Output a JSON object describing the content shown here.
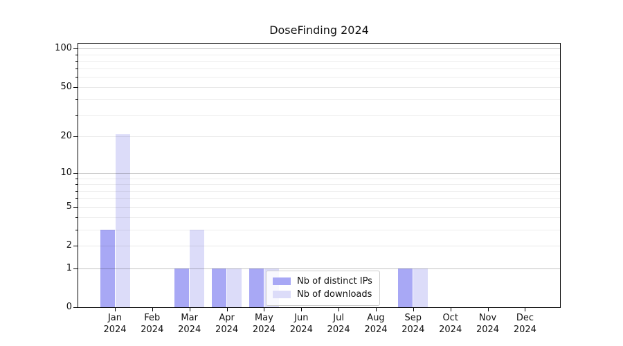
{
  "title": "DoseFinding 2024",
  "colors": {
    "distinct_ips_bar": "#a8a8f5",
    "downloads_bar": "#dcdcf9",
    "decade_gridline": "#c8c8c8",
    "minor_gridline": "#ebebeb",
    "axis": "#000000",
    "background": "#ffffff",
    "legend_border": "#cccccc"
  },
  "legend": {
    "items": [
      {
        "label": "Nb of distinct IPs",
        "color": "#a8a8f5"
      },
      {
        "label": "Nb of downloads",
        "color": "#dcdcf9"
      }
    ]
  },
  "chart_data": {
    "type": "bar",
    "title": "DoseFinding 2024",
    "categories": [
      "Jan 2024",
      "Feb 2024",
      "Mar 2024",
      "Apr 2024",
      "May 2024",
      "Jun 2024",
      "Jul 2024",
      "Aug 2024",
      "Sep 2024",
      "Oct 2024",
      "Nov 2024",
      "Dec 2024"
    ],
    "series": [
      {
        "name": "Nb of distinct IPs",
        "color": "#a8a8f5",
        "values": [
          3,
          0,
          1,
          1,
          1,
          0,
          0,
          0,
          1,
          0,
          0,
          0
        ]
      },
      {
        "name": "Nb of downloads",
        "color": "#dcdcf9",
        "values": [
          21,
          0,
          3,
          1,
          1,
          0,
          0,
          0,
          1,
          0,
          0,
          0
        ]
      }
    ],
    "xlabel": "",
    "ylabel": "",
    "y_scale": "log1p",
    "y_ticks": [
      0,
      1,
      2,
      5,
      10,
      20,
      50,
      100
    ],
    "y_minor_gridlines": [
      3,
      4,
      6,
      7,
      8,
      9,
      30,
      40,
      60,
      70,
      80,
      90
    ],
    "ylim": [
      0,
      110
    ],
    "grid": true,
    "legend_position": "lower-center-inside"
  }
}
